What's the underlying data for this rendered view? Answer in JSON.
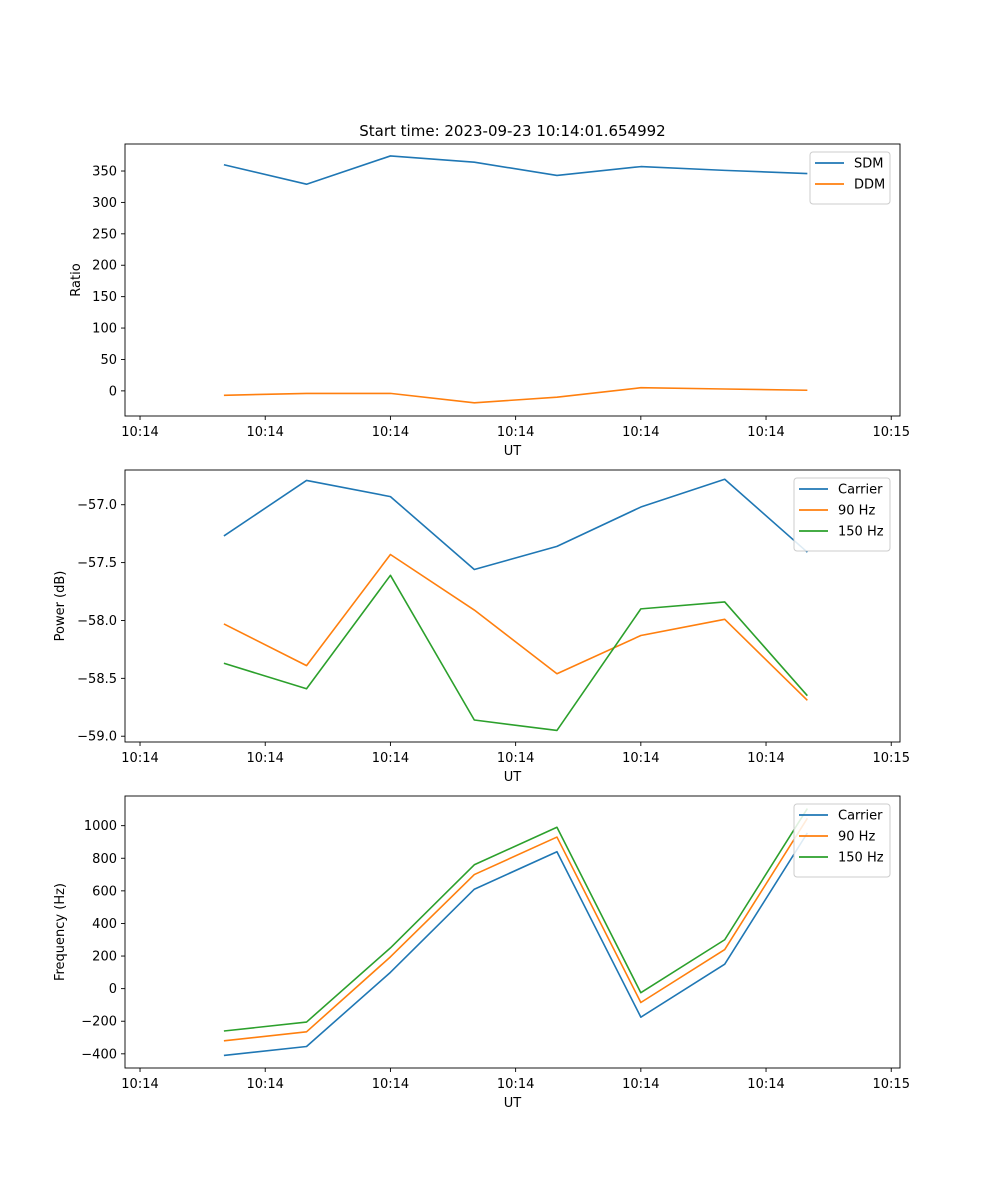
{
  "figure_title": "Start time: 2023-09-23 10:14:01.654992",
  "chart_data": [
    {
      "type": "line",
      "title": "Start time: 2023-09-23 10:14:01.654992",
      "xlabel": "UT",
      "ylabel": "Ratio",
      "x": [
        0.67,
        1.33,
        2.0,
        2.67,
        3.33,
        4.0,
        4.67,
        5.33
      ],
      "xlim": [
        -0.12,
        6.07
      ],
      "xticks": [
        0,
        1,
        2,
        3,
        4,
        5,
        6
      ],
      "xtick_labels": [
        "10:14",
        "10:14",
        "10:14",
        "10:14",
        "10:14",
        "10:14",
        "10:15"
      ],
      "ylim": [
        -40,
        393
      ],
      "yticks": [
        0,
        50,
        100,
        150,
        200,
        250,
        300,
        350
      ],
      "ytick_labels": [
        "0",
        "50",
        "100",
        "150",
        "200",
        "250",
        "300",
        "350"
      ],
      "legend_position": "top-right",
      "series": [
        {
          "name": "SDM",
          "color": "#1f77b4",
          "values": [
            360,
            329,
            374,
            364,
            343,
            357,
            351,
            346
          ]
        },
        {
          "name": "DDM",
          "color": "#ff7f0e",
          "values": [
            -7,
            -4,
            -4,
            -19,
            -10,
            5,
            3,
            1
          ]
        }
      ]
    },
    {
      "type": "line",
      "xlabel": "UT",
      "ylabel": "Power (dB)",
      "x": [
        0.67,
        1.33,
        2.0,
        2.67,
        3.33,
        4.0,
        4.67,
        5.33
      ],
      "xlim": [
        -0.12,
        6.07
      ],
      "xticks": [
        0,
        1,
        2,
        3,
        4,
        5,
        6
      ],
      "xtick_labels": [
        "10:14",
        "10:14",
        "10:14",
        "10:14",
        "10:14",
        "10:14",
        "10:15"
      ],
      "ylim": [
        -59.05,
        -56.7
      ],
      "yticks": [
        -59.0,
        -58.5,
        -58.0,
        -57.5,
        -57.0
      ],
      "ytick_labels": [
        "−59.0",
        "−58.5",
        "−58.0",
        "−57.5",
        "−57.0"
      ],
      "legend_position": "top-right",
      "series": [
        {
          "name": "Carrier",
          "color": "#1f77b4",
          "values": [
            -57.27,
            -56.79,
            -56.93,
            -57.56,
            -57.36,
            -57.02,
            -56.78,
            -57.41
          ]
        },
        {
          "name": "90 Hz",
          "color": "#ff7f0e",
          "values": [
            -58.03,
            -58.39,
            -57.43,
            -57.91,
            -58.46,
            -58.13,
            -57.99,
            -58.69
          ]
        },
        {
          "name": "150 Hz",
          "color": "#2ca02c",
          "values": [
            -58.37,
            -58.59,
            -57.61,
            -58.86,
            -58.95,
            -57.9,
            -57.84,
            -58.65
          ]
        }
      ]
    },
    {
      "type": "line",
      "xlabel": "UT",
      "ylabel": "Frequency (Hz)",
      "x": [
        0.67,
        1.33,
        2.0,
        2.67,
        3.33,
        4.0,
        4.67,
        5.33
      ],
      "xlim": [
        -0.12,
        6.07
      ],
      "xticks": [
        0,
        1,
        2,
        3,
        4,
        5,
        6
      ],
      "xtick_labels": [
        "10:14",
        "10:14",
        "10:14",
        "10:14",
        "10:14",
        "10:14",
        "10:15"
      ],
      "ylim": [
        -487,
        1182
      ],
      "yticks": [
        -400,
        -200,
        0,
        200,
        400,
        600,
        800,
        1000
      ],
      "ytick_labels": [
        "−400",
        "−200",
        "0",
        "200",
        "400",
        "600",
        "800",
        "1000"
      ],
      "legend_position": "top-right",
      "series": [
        {
          "name": "Carrier",
          "color": "#1f77b4",
          "values": [
            -410,
            -355,
            100,
            610,
            840,
            -175,
            150,
            955
          ]
        },
        {
          "name": "90 Hz",
          "color": "#ff7f0e",
          "values": [
            -320,
            -265,
            195,
            700,
            930,
            -85,
            240,
            1045
          ]
        },
        {
          "name": "150 Hz",
          "color": "#2ca02c",
          "values": [
            -260,
            -205,
            250,
            760,
            990,
            -25,
            300,
            1105
          ]
        }
      ]
    }
  ]
}
